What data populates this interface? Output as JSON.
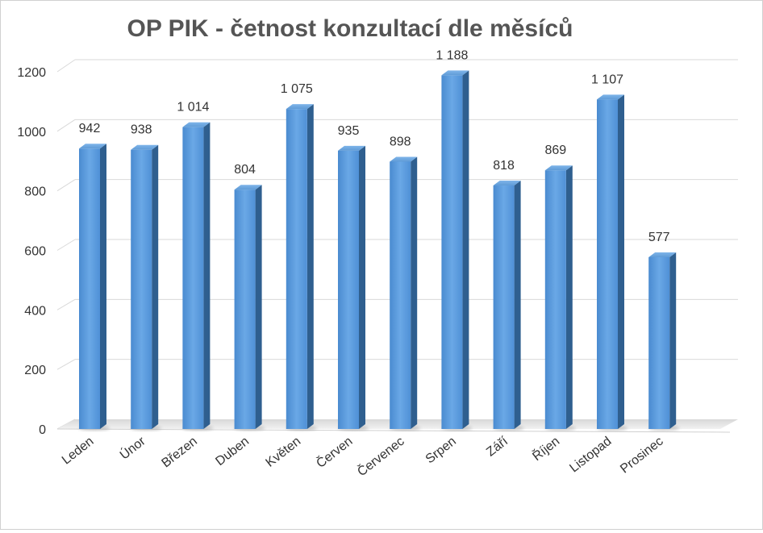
{
  "chart_data": {
    "type": "bar",
    "title": "OP PIK - četnost konzultací dle měsíců",
    "categories": [
      "Leden",
      "Únor",
      "Březen",
      "Duben",
      "Květen",
      "Červen",
      "Červenec",
      "Srpen",
      "Září",
      "Říjen",
      "Listopad",
      "Prosinec"
    ],
    "series": [
      {
        "values": [
          942,
          938,
          1014,
          804,
          1075,
          935,
          898,
          1188,
          818,
          869,
          1107,
          577
        ],
        "labels": [
          "942",
          "938",
          "1 014",
          "804",
          "1 075",
          "935",
          "898",
          "1 188",
          "818",
          "869",
          "1 107",
          "577"
        ],
        "color": "#5b9bd5"
      }
    ],
    "ylim": [
      0,
      1200
    ],
    "yticks": [
      0,
      200,
      400,
      600,
      800,
      1000,
      1200
    ],
    "grid": true,
    "legend": "none",
    "xlabel": "",
    "ylabel": ""
  }
}
